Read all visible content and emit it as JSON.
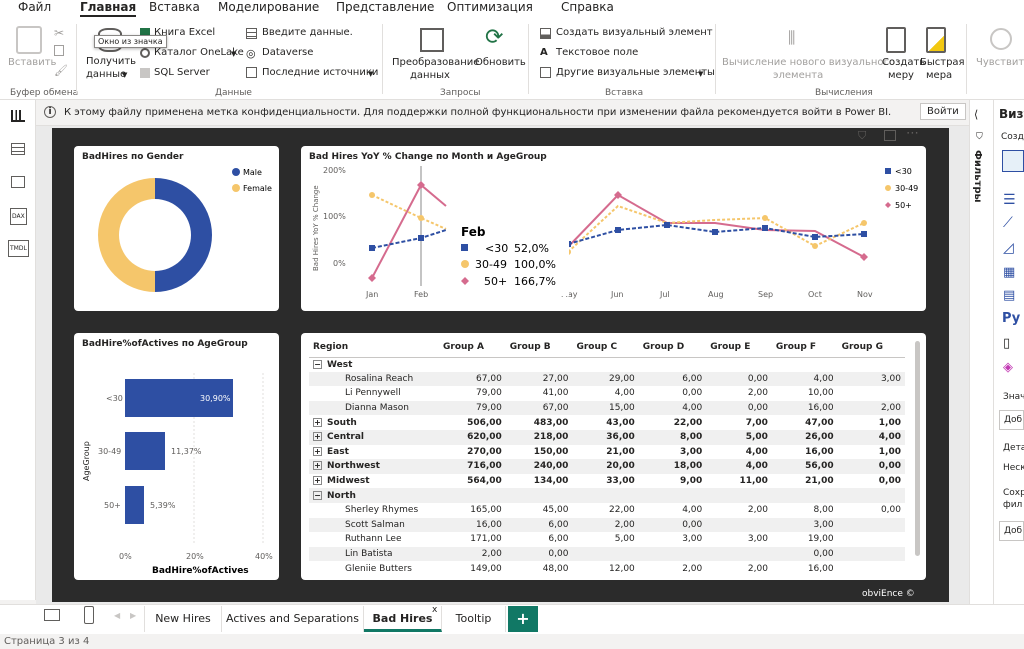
{
  "menu": {
    "items": [
      "Файл",
      "Главная",
      "Вставка",
      "Моделирование",
      "Представление",
      "Оптимизация",
      "Справка"
    ]
  },
  "tooltip": {
    "text": "Окно из значка"
  },
  "ribbon": {
    "paste": "Вставить",
    "clipboard_group": "Буфер обмена",
    "get_data_1": "Получить",
    "get_data_2": "данные",
    "excel": "Книга Excel",
    "onelake": "Каталог OneLake",
    "sql": "SQL Server",
    "enter_data": "Введите данные.",
    "dataverse": "Dataverse",
    "recent": "Последние источники",
    "data_group": "Данные",
    "transform_1": "Преобразование",
    "transform_2": "данных",
    "refresh": "Обновить",
    "queries_group": "Запросы",
    "new_visual": "Создать визуальный элемент",
    "textbox": "Текстовое поле",
    "more_visuals": "Другие визуальные элементы",
    "insert_group": "Вставка",
    "new_visual_calc_1": "Вычисление нового визуального",
    "new_visual_calc_2": "элемента",
    "new_measure_1": "Создать",
    "new_measure_2": "меру",
    "quick_measure_1": "Быстрая",
    "quick_measure_2": "мера",
    "calc_group": "Вычисления",
    "sensitivity": "Чувствител"
  },
  "notice": {
    "text": "К этому файлу применена метка конфиденциальности. Для поддержки полной функциональности при изменении файла рекомендуется войти в Power BI.",
    "signin": "Войти"
  },
  "donut": {
    "title": "BadHires по Gender",
    "legend": [
      {
        "name": "Male",
        "color": "#2e4fa3"
      },
      {
        "name": "Female",
        "color": "#f5c66b"
      }
    ]
  },
  "line": {
    "title": "Bad Hires YoY % Change по Month и AgeGroup",
    "ylabel": "Bad Hires YoY % Change",
    "yticks": [
      "200%",
      "100%",
      "0%"
    ],
    "months": [
      "Jan",
      "Feb",
      "May",
      "Jun",
      "Jul",
      "Aug",
      "Sep",
      "Oct",
      "Nov"
    ],
    "legend": [
      "<30",
      "30-49",
      "50+"
    ],
    "tip": {
      "title": "Feb",
      "rows": [
        {
          "k": "<30",
          "v": "52,0%"
        },
        {
          "k": "30-49",
          "v": "100,0%"
        },
        {
          "k": "50+",
          "v": "166,7%"
        }
      ]
    }
  },
  "bar": {
    "title": "BadHire%ofActives по AgeGroup",
    "ylabel": "AgeGroup",
    "xlabel": "BadHire%ofActives",
    "xticks": [
      "0%",
      "20%",
      "40%"
    ],
    "rows": [
      {
        "k": "<30",
        "label": "30,90%"
      },
      {
        "k": "30-49",
        "label": "11,37%"
      },
      {
        "k": "50+",
        "label": "5,39%"
      }
    ]
  },
  "matrix": {
    "headers": [
      "Region",
      "Group A",
      "Group B",
      "Group C",
      "Group D",
      "Group E",
      "Group F",
      "Group G"
    ],
    "rows": [
      {
        "type": "region",
        "exp": "−",
        "cells": [
          "West",
          "",
          "",
          "",
          "",
          "",
          "",
          ""
        ]
      },
      {
        "type": "leaf",
        "cells": [
          "Rosalina Reach",
          "67,00",
          "27,00",
          "29,00",
          "6,00",
          "0,00",
          "4,00",
          "3,00"
        ]
      },
      {
        "type": "leaf",
        "cells": [
          "Li Pennywell",
          "79,00",
          "41,00",
          "4,00",
          "0,00",
          "2,00",
          "10,00",
          ""
        ]
      },
      {
        "type": "leaf",
        "cells": [
          "Dianna Mason",
          "79,00",
          "67,00",
          "15,00",
          "4,00",
          "0,00",
          "16,00",
          "2,00"
        ]
      },
      {
        "type": "region",
        "exp": "+",
        "cells": [
          "South",
          "506,00",
          "483,00",
          "43,00",
          "22,00",
          "7,00",
          "47,00",
          "1,00"
        ]
      },
      {
        "type": "region",
        "exp": "+",
        "cells": [
          "Central",
          "620,00",
          "218,00",
          "36,00",
          "8,00",
          "5,00",
          "26,00",
          "4,00"
        ]
      },
      {
        "type": "region",
        "exp": "+",
        "cells": [
          "East",
          "270,00",
          "150,00",
          "21,00",
          "3,00",
          "4,00",
          "16,00",
          "1,00"
        ]
      },
      {
        "type": "region",
        "exp": "+",
        "cells": [
          "Northwest",
          "716,00",
          "240,00",
          "20,00",
          "18,00",
          "4,00",
          "56,00",
          "0,00"
        ]
      },
      {
        "type": "region",
        "exp": "+",
        "cells": [
          "Midwest",
          "564,00",
          "134,00",
          "33,00",
          "9,00",
          "11,00",
          "21,00",
          "0,00"
        ]
      },
      {
        "type": "region",
        "exp": "−",
        "cells": [
          "North",
          "",
          "",
          "",
          "",
          "",
          "",
          ""
        ]
      },
      {
        "type": "leaf",
        "cells": [
          "Sherley Rhymes",
          "165,00",
          "45,00",
          "22,00",
          "4,00",
          "2,00",
          "8,00",
          "0,00"
        ]
      },
      {
        "type": "leaf",
        "cells": [
          "Scott Salman",
          "16,00",
          "6,00",
          "2,00",
          "0,00",
          "",
          "3,00",
          ""
        ]
      },
      {
        "type": "leaf",
        "cells": [
          "Ruthann Lee",
          "171,00",
          "6,00",
          "5,00",
          "3,00",
          "3,00",
          "19,00",
          ""
        ]
      },
      {
        "type": "leaf",
        "cells": [
          "Lin Batista",
          "2,00",
          "0,00",
          "",
          "",
          "",
          "0,00",
          ""
        ]
      },
      {
        "type": "leaf",
        "cells": [
          "Gleniie Butters",
          "149,00",
          "48,00",
          "12,00",
          "2,00",
          "2,00",
          "16,00",
          ""
        ]
      }
    ]
  },
  "watermark": "obviEnce ©",
  "pane": {
    "title": "Визу",
    "filters": "Фильтры",
    "create": "Созд",
    "values": "Знач",
    "add1": "Доб",
    "details": "Дета",
    "fields": "Неск",
    "keep_1": "Сохр",
    "keep_2": "фил",
    "add2": "Доб"
  },
  "tabs": {
    "items": [
      "New Hires",
      "Actives and Separations",
      "Bad Hires",
      "Tooltip"
    ],
    "add": "+"
  },
  "status": "Страница 3 из 4"
}
